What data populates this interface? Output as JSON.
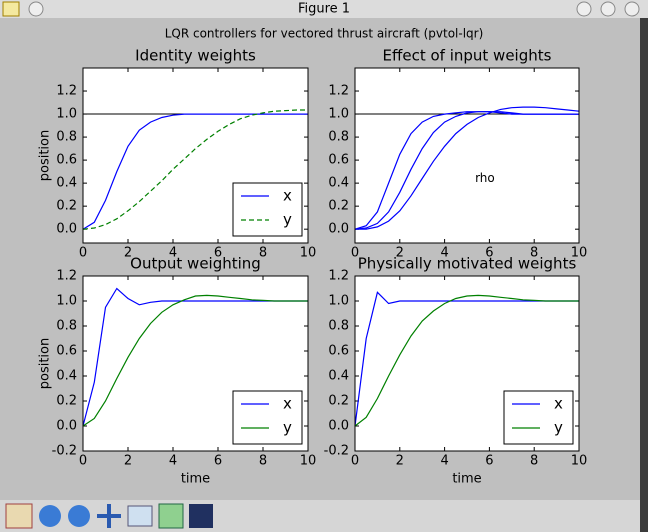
{
  "window": {
    "title": "Figure 1"
  },
  "suptitle": "LQR controllers for vectored thrust aircraft (pvtol-lqr)",
  "chart_data": [
    {
      "type": "line",
      "title": "Identity weights",
      "ylabel": "position",
      "x": [
        0,
        0.5,
        1,
        1.5,
        2,
        2.5,
        3,
        3.5,
        4,
        4.5,
        5,
        5.5,
        6,
        6.5,
        7,
        7.5,
        8,
        8.5,
        9,
        9.5,
        10
      ],
      "series": [
        {
          "name": "x",
          "color": "#0000ff",
          "dash": false,
          "values": [
            0,
            0.06,
            0.25,
            0.5,
            0.72,
            0.86,
            0.93,
            0.97,
            0.99,
            1,
            1,
            1,
            1,
            1,
            1,
            1,
            1,
            1,
            1,
            1,
            1
          ]
        },
        {
          "name": "y",
          "color": "#008000",
          "dash": true,
          "values": [
            0,
            0.01,
            0.04,
            0.09,
            0.16,
            0.24,
            0.33,
            0.42,
            0.52,
            0.61,
            0.7,
            0.78,
            0.85,
            0.91,
            0.96,
            0.99,
            1.01,
            1.025,
            1.03,
            1.035,
            1.035
          ]
        }
      ],
      "hline": 1,
      "xlim": [
        0,
        10
      ],
      "ylim": [
        -0.12,
        1.4
      ],
      "xticks": [
        0,
        2,
        4,
        6,
        8,
        10
      ],
      "yticks": [
        {
          "value": 0,
          "label": "0.0"
        },
        0.2,
        0.4,
        0.6,
        0.8,
        {
          "value": 1,
          "label": "1.0"
        },
        1.2
      ],
      "legend": "lower right"
    },
    {
      "type": "line",
      "title": "Effect of input weights",
      "annotation": "rho",
      "x": [
        0,
        0.5,
        1,
        1.5,
        2,
        2.5,
        3,
        3.5,
        4,
        4.5,
        5,
        5.5,
        6,
        6.5,
        7,
        7.5,
        8,
        8.5,
        9,
        9.5,
        10
      ],
      "series": [
        {
          "color": "#0000ff",
          "values": [
            0,
            0.03,
            0.15,
            0.4,
            0.65,
            0.83,
            0.93,
            0.98,
            1,
            1.01,
            1.02,
            1.02,
            1.02,
            1.01,
            1,
            1,
            1,
            1,
            1,
            1,
            1
          ]
        },
        {
          "color": "#0000ff",
          "values": [
            0,
            0.01,
            0.05,
            0.15,
            0.32,
            0.52,
            0.7,
            0.84,
            0.93,
            0.98,
            1.01,
            1.02,
            1.02,
            1.02,
            1.01,
            1,
            1,
            1,
            1,
            1,
            1
          ]
        },
        {
          "color": "#0000ff",
          "values": [
            0,
            0,
            0.02,
            0.07,
            0.16,
            0.29,
            0.44,
            0.59,
            0.72,
            0.83,
            0.91,
            0.97,
            1.01,
            1.04,
            1.055,
            1.06,
            1.06,
            1.055,
            1.045,
            1.035,
            1.025
          ]
        }
      ],
      "hline": 1,
      "xlim": [
        0,
        10
      ],
      "ylim": [
        -0.12,
        1.4
      ],
      "xticks": [
        0,
        2,
        4,
        6,
        8,
        10
      ],
      "yticks": [
        {
          "value": 0,
          "label": "0.0"
        },
        0.2,
        0.4,
        0.6,
        0.8,
        {
          "value": 1,
          "label": "1.0"
        },
        1.2
      ]
    },
    {
      "type": "line",
      "title": "Output weighting",
      "xlabel": "time",
      "ylabel": "position",
      "x": [
        0,
        0.5,
        1,
        1.5,
        2,
        2.5,
        3,
        3.5,
        4,
        4.5,
        5,
        5.5,
        6,
        6.5,
        7,
        7.5,
        8,
        8.5,
        9,
        9.5,
        10
      ],
      "series": [
        {
          "name": "x",
          "color": "#0000ff",
          "values": [
            0,
            0.35,
            0.95,
            1.1,
            1.02,
            0.97,
            0.99,
            1,
            1,
            1,
            1,
            1,
            1,
            1,
            1,
            1,
            1,
            1,
            1,
            1,
            1
          ]
        },
        {
          "name": "y",
          "color": "#008000",
          "values": [
            0,
            0.06,
            0.2,
            0.38,
            0.55,
            0.7,
            0.82,
            0.91,
            0.97,
            1.01,
            1.04,
            1.045,
            1.04,
            1.03,
            1.02,
            1.01,
            1.005,
            1,
            1,
            1,
            1
          ]
        }
      ],
      "xlim": [
        0,
        10
      ],
      "ylim": [
        -0.2,
        1.2
      ],
      "xticks": [
        0,
        2,
        4,
        6,
        8,
        10
      ],
      "yticks": [
        -0.2,
        {
          "value": 0,
          "label": "0.0"
        },
        0.2,
        0.4,
        0.6,
        0.8,
        {
          "value": 1,
          "label": "1.0"
        },
        1.2
      ],
      "legend": "lower right"
    },
    {
      "type": "line",
      "title": "Physically motivated weights",
      "xlabel": "time",
      "x": [
        0,
        0.5,
        1,
        1.5,
        2,
        2.5,
        3,
        3.5,
        4,
        4.5,
        5,
        5.5,
        6,
        6.5,
        7,
        7.5,
        8,
        8.5,
        9,
        9.5,
        10
      ],
      "series": [
        {
          "name": "x",
          "color": "#0000ff",
          "values": [
            0,
            0.7,
            1.07,
            0.98,
            1,
            1,
            1,
            1,
            1,
            1,
            1,
            1,
            1,
            1,
            1,
            1,
            1,
            1,
            1,
            1,
            1
          ]
        },
        {
          "name": "y",
          "color": "#008000",
          "values": [
            0,
            0.07,
            0.22,
            0.4,
            0.57,
            0.72,
            0.84,
            0.92,
            0.98,
            1.02,
            1.04,
            1.045,
            1.04,
            1.03,
            1.02,
            1.01,
            1.005,
            1,
            1,
            1,
            1
          ]
        }
      ],
      "xlim": [
        0,
        10
      ],
      "ylim": [
        -0.2,
        1.2
      ],
      "xticks": [
        0,
        2,
        4,
        6,
        8,
        10
      ],
      "yticks": [
        -0.2,
        {
          "value": 0,
          "label": "0.0"
        },
        0.2,
        0.4,
        0.6,
        0.8,
        {
          "value": 1,
          "label": "1.0"
        },
        1.2
      ],
      "legend": "lower right"
    }
  ]
}
